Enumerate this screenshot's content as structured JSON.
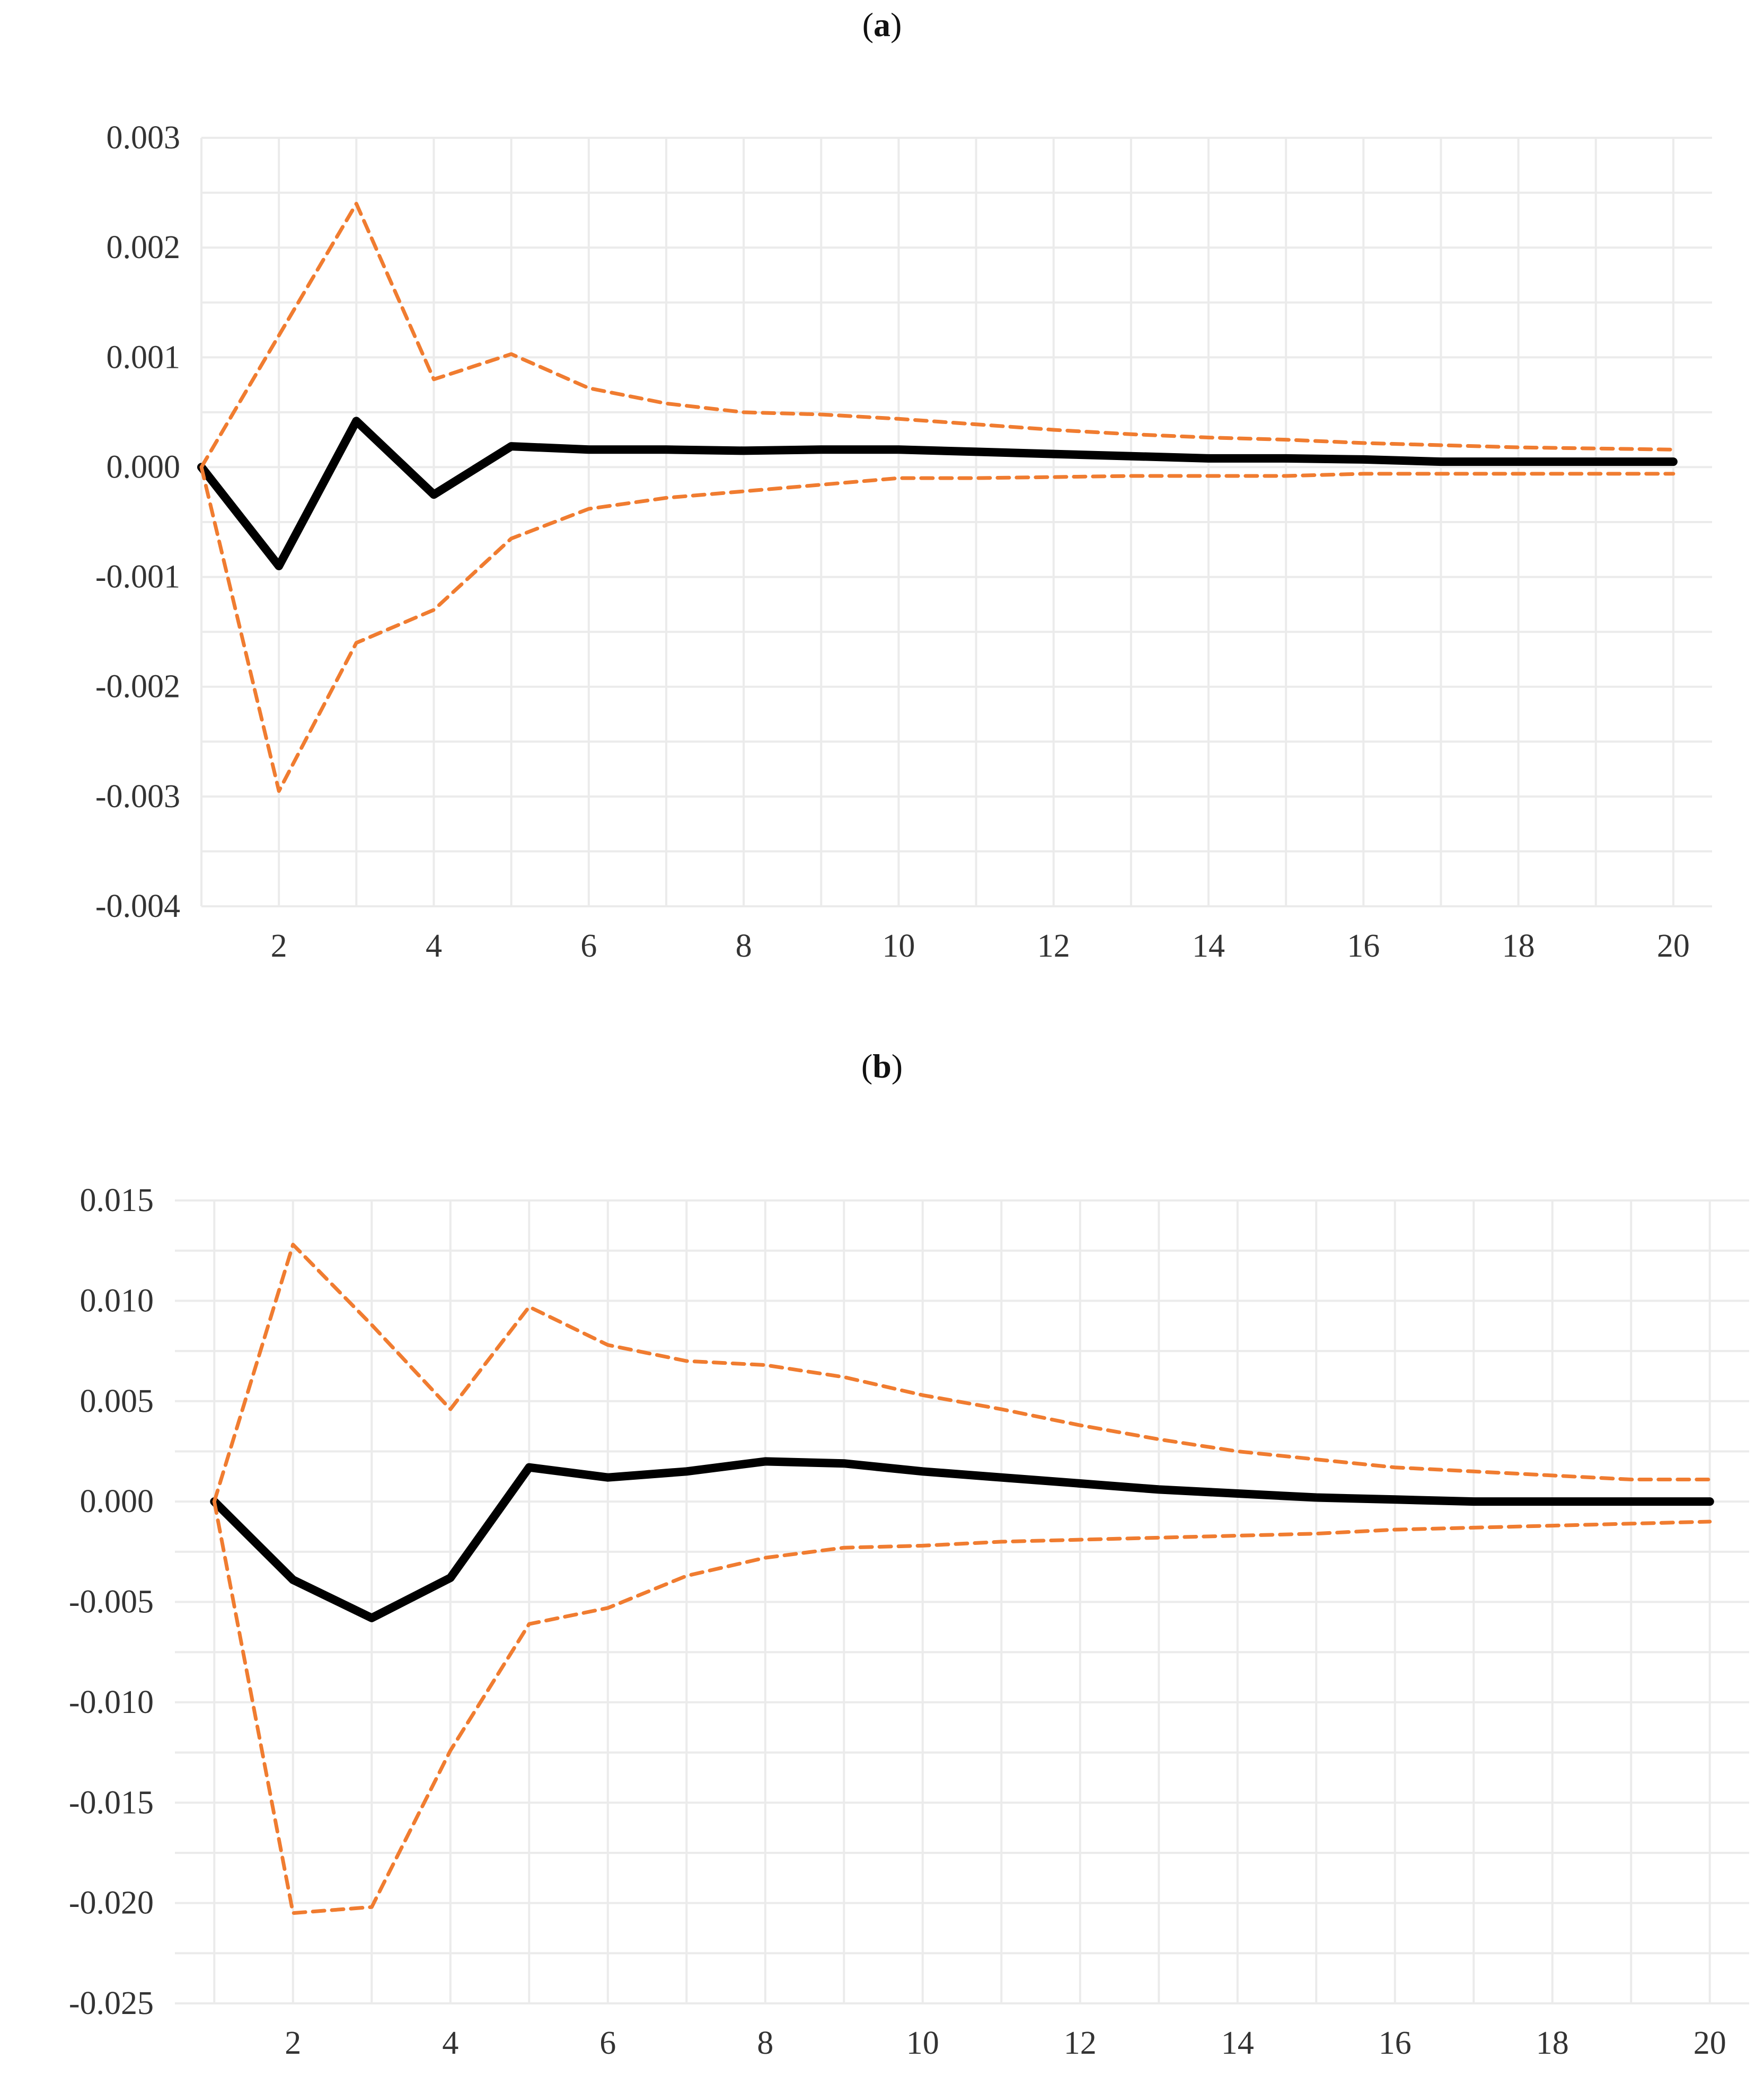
{
  "chart_data": [
    {
      "type": "line",
      "panel_label": "a",
      "title": "",
      "xlabel": "",
      "ylabel": "",
      "xlim": [
        1,
        20.5
      ],
      "ylim": [
        -0.004,
        0.003
      ],
      "x_ticks": [
        2,
        4,
        6,
        8,
        10,
        12,
        14,
        16,
        18,
        20
      ],
      "y_ticks": [
        -0.004,
        -0.003,
        -0.002,
        -0.001,
        0.0,
        0.001,
        0.002,
        0.003
      ],
      "y_tick_labels": [
        "-0.004",
        "-0.003",
        "-0.002",
        "-0.001",
        "0.000",
        "0.001",
        "0.002",
        "0.003"
      ],
      "x": [
        1,
        2,
        3,
        4,
        5,
        6,
        7,
        8,
        9,
        10,
        11,
        12,
        13,
        14,
        15,
        16,
        17,
        18,
        19,
        20
      ],
      "grid": true,
      "legend": false,
      "colors": {
        "irf": "#000000",
        "bands": "#f07c30"
      },
      "series": [
        {
          "role": "irf",
          "style": "solid",
          "values": [
            0.0,
            -0.0009,
            0.00042,
            -0.00025,
            0.00019,
            0.00016,
            0.00016,
            0.00015,
            0.00016,
            0.00016,
            0.00014,
            0.00012,
            0.0001,
            8e-05,
            8e-05,
            7e-05,
            5e-05,
            5e-05,
            5e-05,
            5e-05
          ]
        },
        {
          "role": "upper",
          "style": "dashed",
          "values": [
            0.0,
            0.0012,
            0.0024,
            0.0008,
            0.00103,
            0.00072,
            0.00058,
            0.0005,
            0.00048,
            0.00044,
            0.00039,
            0.00034,
            0.0003,
            0.00027,
            0.00025,
            0.00022,
            0.0002,
            0.00018,
            0.00017,
            0.00016
          ]
        },
        {
          "role": "lower",
          "style": "dashed",
          "values": [
            0.0,
            -0.00295,
            -0.0016,
            -0.0013,
            -0.00065,
            -0.00038,
            -0.00028,
            -0.00022,
            -0.00016,
            -0.0001,
            -0.0001,
            -9e-05,
            -8e-05,
            -8e-05,
            -8e-05,
            -6e-05,
            -6e-05,
            -6e-05,
            -6e-05,
            -6e-05
          ]
        }
      ]
    },
    {
      "type": "line",
      "panel_label": "b",
      "title": "",
      "xlabel": "",
      "ylabel": "",
      "xlim": [
        0.5,
        20.5
      ],
      "ylim": [
        -0.025,
        0.015
      ],
      "x_ticks": [
        2,
        4,
        6,
        8,
        10,
        12,
        14,
        16,
        18,
        20
      ],
      "y_ticks": [
        -0.025,
        -0.02,
        -0.015,
        -0.01,
        -0.005,
        0.0,
        0.005,
        0.01,
        0.015
      ],
      "y_tick_labels": [
        "-0.025",
        "-0.020",
        "-0.015",
        "-0.010",
        "-0.005",
        "0.000",
        "0.005",
        "0.010",
        "0.015"
      ],
      "x": [
        1,
        2,
        3,
        4,
        5,
        6,
        7,
        8,
        9,
        10,
        11,
        12,
        13,
        14,
        15,
        16,
        17,
        18,
        19,
        20
      ],
      "grid": true,
      "legend": false,
      "colors": {
        "irf": "#000000",
        "bands": "#f07c30"
      },
      "series": [
        {
          "role": "irf",
          "style": "solid",
          "values": [
            0.0,
            -0.0039,
            -0.0058,
            -0.0038,
            0.0017,
            0.0012,
            0.0015,
            0.002,
            0.0019,
            0.0015,
            0.0012,
            0.0009,
            0.0006,
            0.0004,
            0.0002,
            0.0001,
            0.0,
            0.0,
            0.0,
            0.0
          ]
        },
        {
          "role": "upper",
          "style": "dashed",
          "values": [
            0.0,
            0.0128,
            0.0088,
            0.0046,
            0.0097,
            0.0078,
            0.007,
            0.0068,
            0.0062,
            0.0053,
            0.0046,
            0.0038,
            0.0031,
            0.0025,
            0.0021,
            0.0017,
            0.0015,
            0.0013,
            0.0011,
            0.0011
          ]
        },
        {
          "role": "lower",
          "style": "dashed",
          "values": [
            0.0,
            -0.0205,
            -0.0202,
            -0.0124,
            -0.0061,
            -0.0053,
            -0.0037,
            -0.0028,
            -0.0023,
            -0.0022,
            -0.002,
            -0.0019,
            -0.0018,
            -0.0017,
            -0.0016,
            -0.0014,
            -0.0013,
            -0.0012,
            -0.0011,
            -0.001
          ]
        }
      ]
    }
  ]
}
